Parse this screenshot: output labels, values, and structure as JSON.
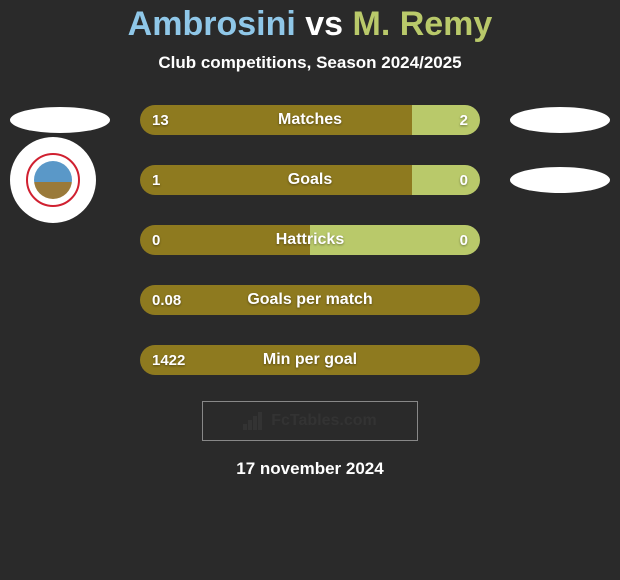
{
  "title": {
    "player1": "Ambrosini",
    "vs": " vs ",
    "player2": "M. Remy",
    "fontsize": 34,
    "color_p1": "#8fc7e8",
    "color_vs": "#ffffff",
    "color_p2": "#b9c96a"
  },
  "subtitle": {
    "text": "Club competitions, Season 2024/2025",
    "fontsize": 17
  },
  "colors": {
    "bar_left": "#8e7a1f",
    "bar_right": "#b9c96a",
    "bar_empty_left": "#8e7a1f",
    "bar_empty_right": "#b9c96a",
    "background": "#2a2a2a"
  },
  "rows": [
    {
      "label": "Matches",
      "left": "13",
      "right": "2",
      "left_pct": 80,
      "right_pct": 20,
      "left_avatar": "oval",
      "right_avatar": "oval"
    },
    {
      "label": "Goals",
      "left": "1",
      "right": "0",
      "left_pct": 80,
      "right_pct": 20,
      "left_avatar": "circle",
      "right_avatar": "oval"
    },
    {
      "label": "Hattricks",
      "left": "0",
      "right": "0",
      "left_pct": 50,
      "right_pct": 50,
      "left_avatar": "none",
      "right_avatar": "none"
    },
    {
      "label": "Goals per match",
      "left": "0.08",
      "right": "",
      "left_pct": 100,
      "right_pct": 0,
      "left_avatar": "none",
      "right_avatar": "none"
    },
    {
      "label": "Min per goal",
      "left": "1422",
      "right": "",
      "left_pct": 100,
      "right_pct": 0,
      "left_avatar": "none",
      "right_avatar": "none"
    }
  ],
  "watermark": {
    "text": "FcTables.com",
    "fontsize": 16
  },
  "date": "17 november 2024"
}
